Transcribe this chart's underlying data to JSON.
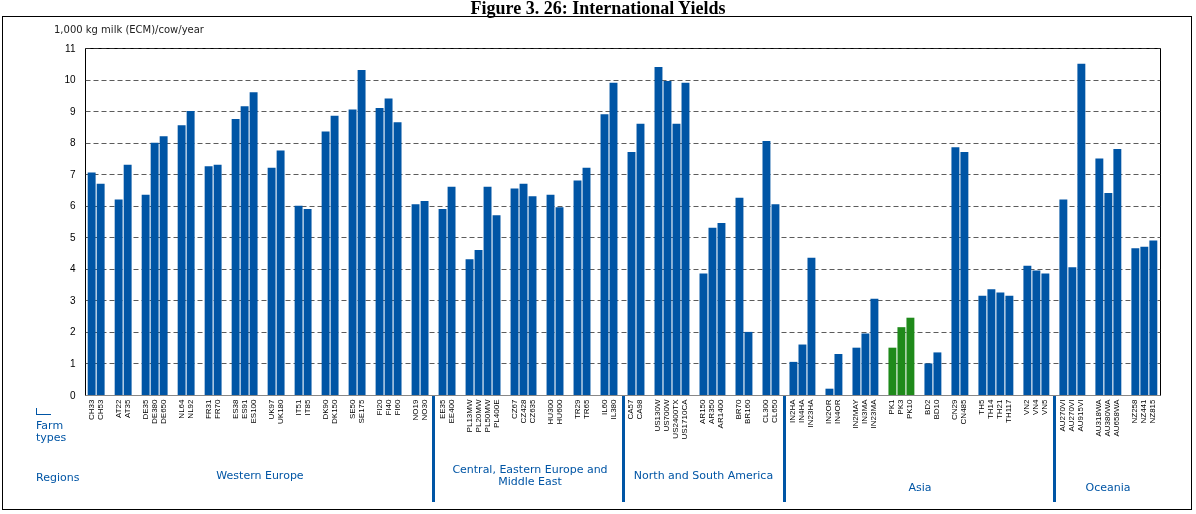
{
  "chart_data": {
    "type": "bar",
    "title": "Figure 3. 26: International Yields",
    "ylabel": "1,000 kg milk (ECM)/cow/year",
    "categories": [
      "CH33",
      "CH53",
      null,
      "AT22",
      "AT35",
      null,
      "DE35",
      "DE380",
      "DE650",
      null,
      "NL64",
      "NL92",
      null,
      "FR31",
      "FR70",
      null,
      "ES38",
      "ES91",
      "ES100",
      null,
      "UK97",
      "UK180",
      null,
      "IT51",
      "IT85",
      null,
      "DK90",
      "DK150",
      null,
      "SE50",
      "SE175",
      null,
      "FI20",
      "FI40",
      "FI60",
      null,
      "NO19",
      "NO30",
      null,
      "EE35",
      "EE400",
      null,
      "PL13MW",
      "PL20MW",
      "PL50MW",
      "PL400E",
      null,
      "CZ67",
      "CZ428",
      "CZ635",
      null,
      "HU300",
      "HU600",
      null,
      "TR29",
      "TR65",
      null,
      "IL60",
      "IL380",
      null,
      "CA57",
      "CA98",
      null,
      "US130W",
      "US700W",
      "US2400TX",
      "US1710CA",
      null,
      "AR150",
      "AR350",
      "AR1400",
      null,
      "BR70",
      "BR160",
      null,
      "CL300",
      "CL650",
      null,
      "IN2HA",
      "IN4HA",
      "IN23HA",
      null,
      "IN2OR",
      "IN4OR",
      null,
      "IN2MAY",
      "IN3MA",
      "IN23MA",
      null,
      "PK1",
      "PK3",
      "PK10",
      null,
      "BD2",
      "BD10",
      null,
      "CN29",
      "CN485",
      null,
      "TH5",
      "TH14",
      "TH21",
      "TH117",
      null,
      "VN2",
      "VN4",
      "VN5",
      null,
      "AU270VI",
      "AU270VI",
      "AU915VI",
      null,
      "AU318WA",
      "AU380WA",
      "AU658WA",
      null,
      "NZ258",
      "NZ441",
      "NZ815"
    ],
    "values": [
      7.05,
      6.7,
      null,
      6.2,
      7.3,
      null,
      6.35,
      8.0,
      8.2,
      null,
      8.55,
      9.0,
      null,
      7.25,
      7.3,
      null,
      8.75,
      9.15,
      9.6,
      null,
      7.2,
      7.75,
      null,
      6.0,
      5.9,
      null,
      8.35,
      8.85,
      null,
      9.05,
      10.3,
      null,
      9.1,
      9.4,
      8.65,
      null,
      6.05,
      6.15,
      null,
      5.9,
      6.6,
      null,
      4.3,
      4.6,
      6.6,
      5.7,
      null,
      6.55,
      6.7,
      6.3,
      null,
      6.35,
      5.95,
      null,
      6.8,
      7.2,
      null,
      8.9,
      9.9,
      null,
      7.7,
      8.6,
      null,
      10.4,
      9.95,
      8.6,
      9.9,
      null,
      3.85,
      5.3,
      5.45,
      null,
      6.25,
      2.0,
      null,
      8.05,
      6.05,
      null,
      1.05,
      1.6,
      4.35,
      null,
      0.2,
      1.3,
      null,
      1.5,
      1.95,
      3.05,
      null,
      1.5,
      2.15,
      2.45,
      null,
      1.0,
      1.35,
      null,
      7.85,
      7.7,
      null,
      3.15,
      3.35,
      3.25,
      3.15,
      null,
      4.1,
      3.95,
      3.85,
      null,
      6.2,
      4.05,
      10.5,
      null,
      7.5,
      6.4,
      7.8,
      null,
      4.65,
      4.7,
      4.9
    ],
    "colors": [
      "#0055a5",
      "#0055a5",
      null,
      "#0055a5",
      "#0055a5",
      null,
      "#0055a5",
      "#0055a5",
      "#0055a5",
      null,
      "#0055a5",
      "#0055a5",
      null,
      "#0055a5",
      "#0055a5",
      null,
      "#0055a5",
      "#0055a5",
      "#0055a5",
      null,
      "#0055a5",
      "#0055a5",
      null,
      "#0055a5",
      "#0055a5",
      null,
      "#0055a5",
      "#0055a5",
      null,
      "#0055a5",
      "#0055a5",
      null,
      "#0055a5",
      "#0055a5",
      "#0055a5",
      null,
      "#0055a5",
      "#0055a5",
      null,
      "#0055a5",
      "#0055a5",
      null,
      "#0055a5",
      "#0055a5",
      "#0055a5",
      "#0055a5",
      null,
      "#0055a5",
      "#0055a5",
      "#0055a5",
      null,
      "#0055a5",
      "#0055a5",
      null,
      "#0055a5",
      "#0055a5",
      null,
      "#0055a5",
      "#0055a5",
      null,
      "#0055a5",
      "#0055a5",
      null,
      "#0055a5",
      "#0055a5",
      "#0055a5",
      "#0055a5",
      null,
      "#0055a5",
      "#0055a5",
      "#0055a5",
      null,
      "#0055a5",
      "#0055a5",
      null,
      "#0055a5",
      "#0055a5",
      null,
      "#0055a5",
      "#0055a5",
      "#0055a5",
      null,
      "#0055a5",
      "#0055a5",
      null,
      "#0055a5",
      "#0055a5",
      "#0055a5",
      null,
      "#1f8a1a",
      "#1f8a1a",
      "#1f8a1a",
      null,
      "#0055a5",
      "#0055a5",
      null,
      "#0055a5",
      "#0055a5",
      null,
      "#0055a5",
      "#0055a5",
      "#0055a5",
      "#0055a5",
      null,
      "#0055a5",
      "#0055a5",
      "#0055a5",
      null,
      "#0055a5",
      "#0055a5",
      "#0055a5",
      null,
      "#0055a5",
      "#0055a5",
      "#0055a5",
      null,
      "#0055a5",
      "#0055a5",
      "#0055a5"
    ],
    "ylim": [
      0,
      11
    ],
    "yticks": [
      0,
      1,
      2,
      3,
      4,
      5,
      6,
      7,
      8,
      9,
      10,
      11
    ],
    "grid": "y",
    "annotations": [
      "Farm types",
      "Regions",
      "Western Europe",
      "Central, Eastern Europe and Middle East",
      "North and South America",
      "Asia",
      "Oceania"
    ]
  }
}
